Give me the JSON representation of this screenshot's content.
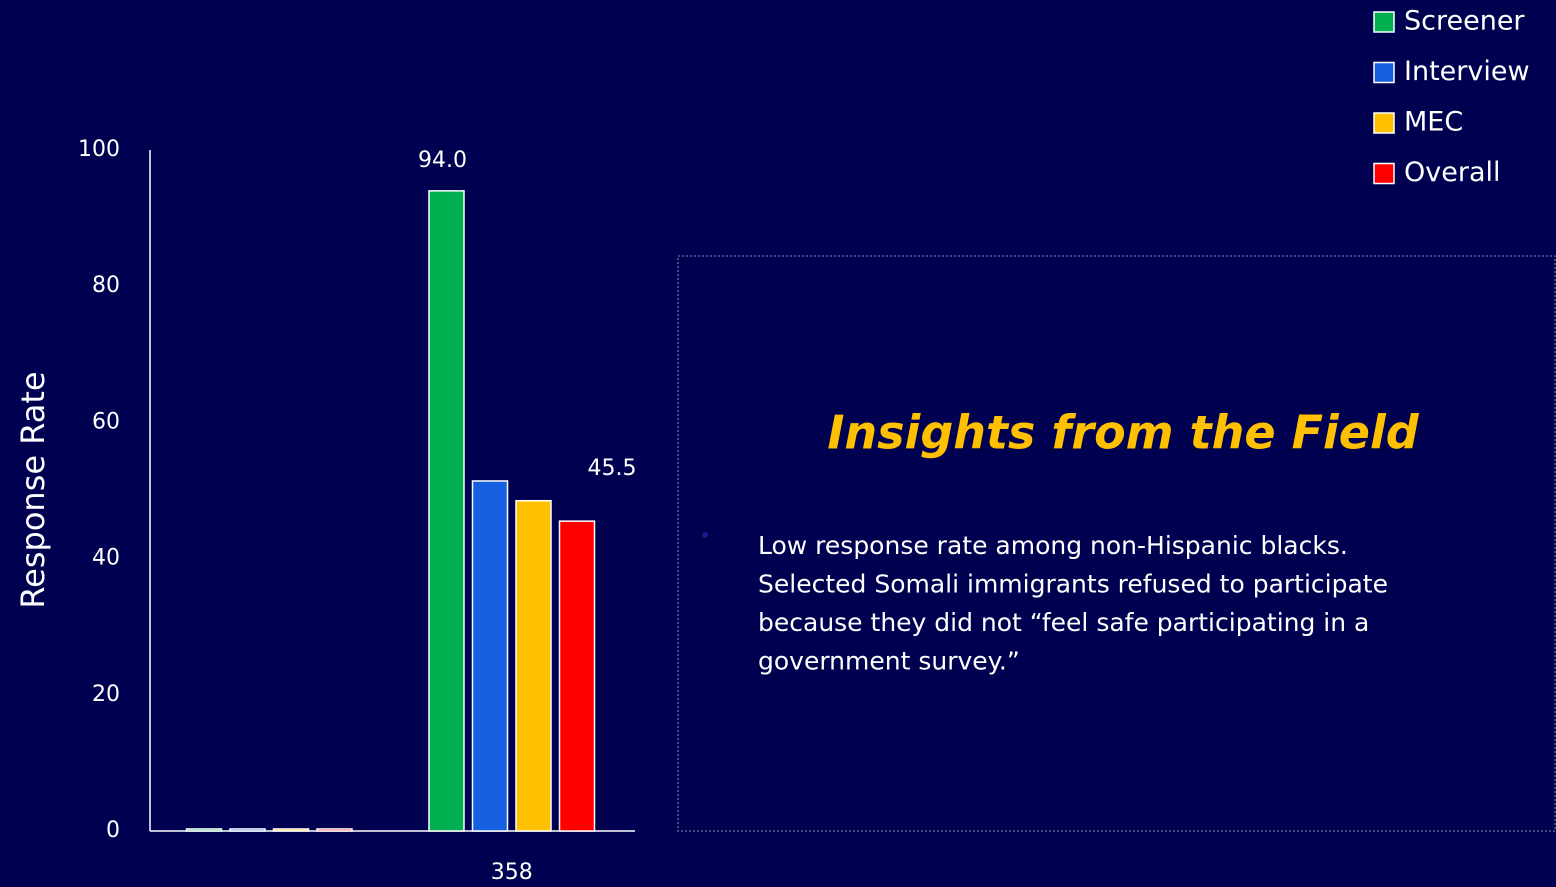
{
  "chart_data": {
    "type": "bar",
    "y_label": "Response Rate",
    "categories": [
      null,
      "358"
    ],
    "series": [
      {
        "name": "Screener",
        "color": "#00b050",
        "values": [
          0.3,
          94.0
        ],
        "value_labels": [
          null,
          "94.0"
        ]
      },
      {
        "name": "Interview",
        "color": "#1560e0",
        "values": [
          0.3,
          51.4
        ]
      },
      {
        "name": "MEC",
        "color": "#ffc000",
        "values": [
          0.3,
          48.5
        ]
      },
      {
        "name": "Overall",
        "color": "#ff0000",
        "values": [
          0.3,
          45.5
        ],
        "value_labels": [
          null,
          "45.5"
        ]
      }
    ],
    "ylim": [
      0,
      100
    ],
    "yticks": [
      0,
      20,
      40,
      60,
      80,
      100
    ],
    "grid": false,
    "legend": "top-right"
  },
  "annotation": {
    "title": "Insights from the Field",
    "lines": [
      "Low response rate among non-Hispanic blacks.",
      "Selected Somali immigrants refused to participate",
      "because they did not “feel safe participating in a",
      "government survey.”"
    ]
  }
}
